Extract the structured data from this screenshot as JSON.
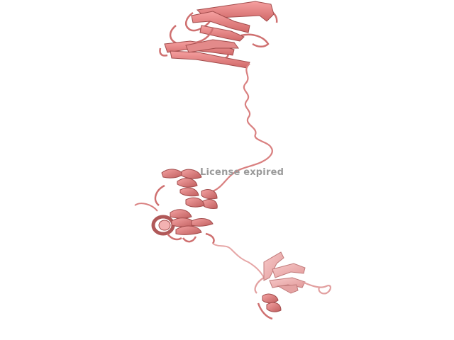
{
  "viewer": {
    "watermark_text": "License expired",
    "background_color": "#ffffff",
    "protein_color": "#f08080",
    "protein_dark": "#b85a5a",
    "protein_light": "#f4b8b8",
    "watermark_color": "#9a9a9a"
  }
}
